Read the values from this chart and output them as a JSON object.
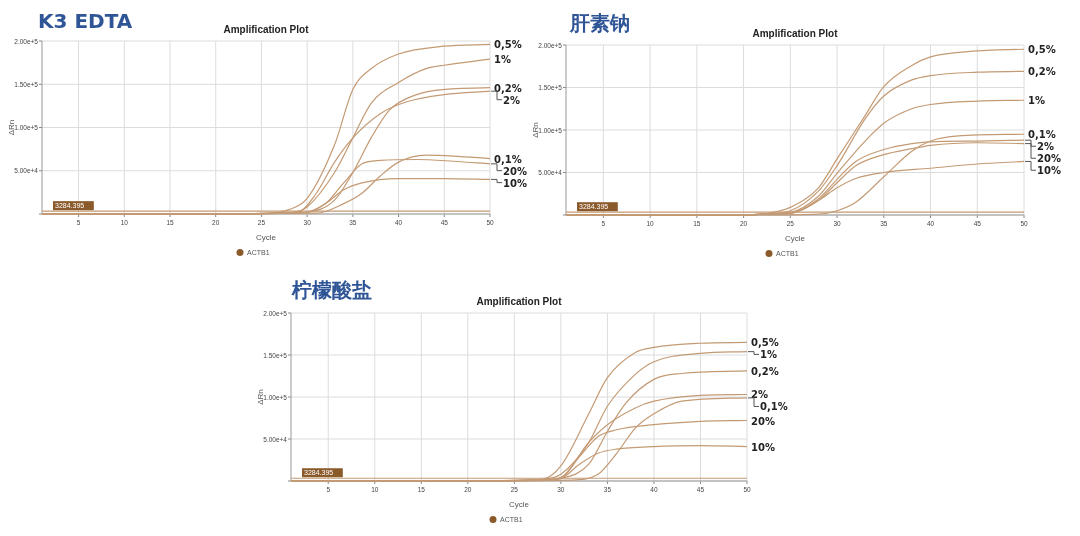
{
  "chart_data": [
    {
      "type": "line",
      "title": "K3 EDTA",
      "subtitle": "Amplification Plot",
      "xlabel": "Cycle",
      "ylabel": "ΔRn",
      "xlim": [
        1,
        50
      ],
      "xticks": [
        5,
        10,
        15,
        20,
        25,
        30,
        35,
        40,
        45,
        50
      ],
      "ylim": [
        0,
        200000
      ],
      "yticks": [
        {
          "value": 0,
          "label": null
        },
        {
          "value": 50000,
          "label": "5.00e+4"
        },
        {
          "value": 100000,
          "label": "1.00e+5"
        },
        {
          "value": 150000,
          "label": "1.50e+5"
        },
        {
          "value": 200000,
          "label": "2.00e+5"
        }
      ],
      "grid": true,
      "legend": "right",
      "annotations": [
        "ACTB1"
      ],
      "ref_lines": [
        {
          "axis": "y",
          "value": 3284.395,
          "label": "3284.395",
          "color": "#c49a74"
        }
      ],
      "series": [
        {
          "name": "0,5%",
          "color": "#c49a74",
          "x": [
            1,
            20,
            26,
            28,
            30,
            33,
            35,
            37,
            40,
            45,
            50
          ],
          "values": [
            0,
            0,
            1000,
            5000,
            18000,
            80000,
            144000,
            168000,
            185000,
            194000,
            196000
          ]
        },
        {
          "name": "1%",
          "color": "#c49a74",
          "x": [
            1,
            20,
            27,
            29,
            30,
            33,
            35,
            37,
            40,
            43,
            45,
            50
          ],
          "values": [
            0,
            0,
            1000,
            3000,
            8000,
            48000,
            88000,
            128000,
            152000,
            168000,
            172000,
            179000
          ]
        },
        {
          "name": "0,2%",
          "color": "#c49a74",
          "x": [
            1,
            20,
            28,
            30,
            33,
            35,
            37,
            39,
            41,
            44,
            50
          ],
          "values": [
            0,
            0,
            1000,
            2000,
            16000,
            48000,
            88000,
            120000,
            134000,
            143000,
            146000
          ]
        },
        {
          "name": "2%",
          "color": "#c49a74",
          "x": [
            1,
            20,
            27,
            29,
            31,
            33,
            35,
            38,
            41,
            45,
            50
          ],
          "values": [
            0,
            0,
            1000,
            2000,
            24000,
            60000,
            88000,
            116000,
            130000,
            138000,
            142000
          ]
        },
        {
          "name": "0,1%",
          "color": "#c49a74",
          "x": [
            1,
            20,
            29,
            31,
            34,
            36,
            38,
            40,
            43,
            46,
            50
          ],
          "values": [
            0,
            0,
            1000,
            1000,
            12000,
            24000,
            44000,
            60000,
            68000,
            67000,
            64000
          ]
        },
        {
          "name": "20%",
          "color": "#c49a74",
          "x": [
            1,
            20,
            28,
            30,
            32,
            34,
            36,
            38,
            42,
            46,
            50
          ],
          "values": [
            0,
            0,
            1000,
            2000,
            12000,
            36000,
            58000,
            62000,
            63000,
            61000,
            58000
          ]
        },
        {
          "name": "10%",
          "color": "#c49a74",
          "x": [
            1,
            20,
            28,
            30,
            32,
            34,
            36,
            40,
            45,
            50
          ],
          "values": [
            0,
            0,
            1000,
            2000,
            12000,
            28000,
            36000,
            41000,
            41000,
            40000
          ]
        }
      ]
    },
    {
      "type": "line",
      "title": "肝素钠",
      "subtitle": "Amplification Plot",
      "xlabel": "Cycle",
      "ylabel": "ΔRn",
      "xlim": [
        1,
        50
      ],
      "xticks": [
        5,
        10,
        15,
        20,
        25,
        30,
        35,
        40,
        45,
        50
      ],
      "ylim": [
        0,
        200000
      ],
      "yticks": [
        {
          "value": 0,
          "label": null
        },
        {
          "value": 50000,
          "label": "5.00e+4"
        },
        {
          "value": 100000,
          "label": "1.00e+5"
        },
        {
          "value": 150000,
          "label": "1.50e+5"
        },
        {
          "value": 200000,
          "label": "2.00e+5"
        }
      ],
      "grid": true,
      "legend": "right",
      "annotations": [
        "ACTB1"
      ],
      "ref_lines": [
        {
          "axis": "y",
          "value": 3284.395,
          "label": "3284.395",
          "color": "#c49a74"
        }
      ],
      "series": [
        {
          "name": "0,5%",
          "color": "#c49a74",
          "x": [
            1,
            20,
            22,
            25,
            28,
            30,
            33,
            35,
            38,
            40,
            45,
            50
          ],
          "values": [
            0,
            0,
            1000,
            9000,
            32000,
            66000,
            117000,
            151000,
            176000,
            186000,
            193000,
            195000
          ]
        },
        {
          "name": "0,2%",
          "color": "#c49a74",
          "x": [
            1,
            20,
            22,
            25,
            28,
            30,
            33,
            35,
            38,
            40,
            45,
            50
          ],
          "values": [
            0,
            0,
            1000,
            5000,
            28000,
            58000,
            113000,
            140000,
            159000,
            164000,
            168000,
            169000
          ]
        },
        {
          "name": "1%",
          "color": "#c49a74",
          "x": [
            1,
            20,
            22,
            25,
            28,
            30,
            33,
            35,
            38,
            40,
            45,
            50
          ],
          "values": [
            0,
            0,
            1000,
            3000,
            22000,
            49000,
            87000,
            108000,
            125000,
            130000,
            134000,
            135000
          ]
        },
        {
          "name": "0,1%",
          "color": "#c49a74",
          "x": [
            1,
            20,
            28,
            30,
            32,
            35,
            38,
            40,
            43,
            50
          ],
          "values": [
            0,
            0,
            1000,
            5000,
            15000,
            45000,
            75000,
            87000,
            93000,
            95000
          ]
        },
        {
          "name": "2%",
          "color": "#c49a74",
          "x": [
            1,
            20,
            22,
            25,
            28,
            30,
            32,
            35,
            38,
            40,
            45,
            50
          ],
          "values": [
            0,
            0,
            1000,
            2000,
            19000,
            42000,
            63000,
            77000,
            84000,
            86000,
            87000,
            88000
          ]
        },
        {
          "name": "20%",
          "color": "#c49a74",
          "x": [
            1,
            20,
            22,
            25,
            28,
            30,
            32,
            35,
            38,
            40,
            45,
            50
          ],
          "values": [
            0,
            0,
            1000,
            2000,
            17000,
            38000,
            58000,
            71000,
            78000,
            82000,
            85000,
            84000
          ]
        },
        {
          "name": "10%",
          "color": "#c49a74",
          "x": [
            1,
            20,
            22,
            25,
            28,
            30,
            32,
            35,
            40,
            45,
            50
          ],
          "values": [
            0,
            0,
            1000,
            2000,
            17000,
            32000,
            43000,
            50000,
            55000,
            60000,
            63000
          ]
        }
      ]
    },
    {
      "type": "line",
      "title": "柠檬酸盐",
      "subtitle": "Amplification Plot",
      "xlabel": "Cycle",
      "ylabel": "ΔRn",
      "xlim": [
        1,
        50
      ],
      "xticks": [
        5,
        10,
        15,
        20,
        25,
        30,
        35,
        40,
        45,
        50
      ],
      "ylim": [
        0,
        200000
      ],
      "yticks": [
        {
          "value": 0,
          "label": null
        },
        {
          "value": 50000,
          "label": "5.00e+4"
        },
        {
          "value": 100000,
          "label": "1.00e+5"
        },
        {
          "value": 150000,
          "label": "1.50e+5"
        },
        {
          "value": 200000,
          "label": "2.00e+5"
        }
      ],
      "grid": true,
      "legend": "right",
      "annotations": [
        "ACTB1"
      ],
      "ref_lines": [
        {
          "axis": "y",
          "value": 3284.395,
          "label": "3284.395",
          "color": "#c49a74"
        }
      ],
      "series": [
        {
          "name": "0,5%",
          "color": "#c49a74",
          "x": [
            1,
            20,
            26,
            28,
            30,
            33,
            35,
            38,
            40,
            45,
            50
          ],
          "values": [
            0,
            0,
            1000,
            2000,
            18000,
            80000,
            123000,
            153000,
            159000,
            164000,
            165000
          ]
        },
        {
          "name": "1%",
          "color": "#c49a74",
          "x": [
            1,
            20,
            28,
            30,
            33,
            35,
            38,
            40,
            45,
            50
          ],
          "values": [
            0,
            0,
            2000,
            8000,
            46000,
            89000,
            127000,
            142000,
            152000,
            154000
          ]
        },
        {
          "name": "0,2%",
          "color": "#c49a74",
          "x": [
            1,
            20,
            28,
            30,
            33,
            35,
            37,
            40,
            43,
            50
          ],
          "values": [
            0,
            0,
            1000,
            3000,
            20000,
            59000,
            93000,
            121000,
            128000,
            131000
          ]
        },
        {
          "name": "2%",
          "color": "#c49a74",
          "x": [
            1,
            20,
            28,
            30,
            33,
            35,
            38,
            40,
            45,
            50
          ],
          "values": [
            0,
            0,
            1000,
            4000,
            46000,
            67000,
            87000,
            95000,
            102000,
            103000
          ]
        },
        {
          "name": "0,1%",
          "color": "#c49a74",
          "x": [
            1,
            20,
            31,
            34,
            36,
            38,
            40,
            43,
            50
          ],
          "values": [
            0,
            0,
            1000,
            8000,
            33000,
            63000,
            80000,
            95000,
            99000
          ]
        },
        {
          "name": "20%",
          "color": "#c49a74",
          "x": [
            1,
            20,
            28,
            30,
            32,
            34,
            36,
            40,
            45,
            50
          ],
          "values": [
            0,
            0,
            1000,
            4000,
            29000,
            53000,
            61000,
            67000,
            71000,
            72000
          ]
        },
        {
          "name": "10%",
          "color": "#c49a74",
          "x": [
            1,
            20,
            28,
            30,
            32,
            34,
            36,
            40,
            45,
            50
          ],
          "values": [
            0,
            0,
            1000,
            3000,
            20000,
            33000,
            38000,
            41000,
            42000,
            41000
          ]
        }
      ]
    }
  ]
}
